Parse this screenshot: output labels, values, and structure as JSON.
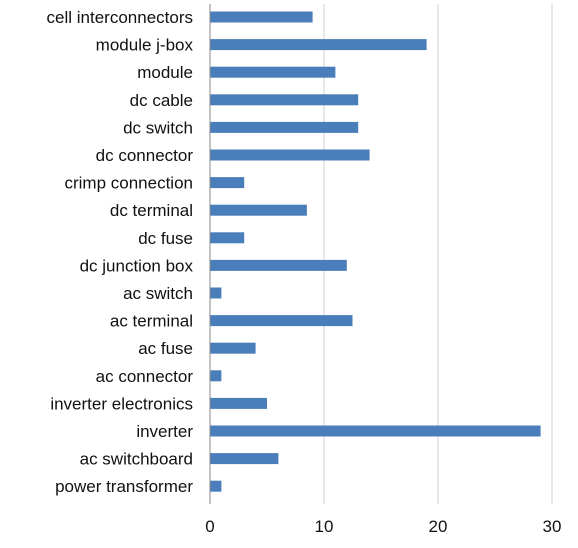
{
  "chart_data": {
    "type": "bar",
    "orientation": "horizontal",
    "categories": [
      "cell interconnectors",
      "module j-box",
      "module",
      "dc cable",
      "dc switch",
      "dc connector",
      "crimp connection",
      "dc terminal",
      "dc fuse",
      "dc junction box",
      "ac switch",
      "ac terminal",
      "ac fuse",
      "ac connector",
      "inverter electronics",
      "inverter",
      "ac switchboard",
      "power transformer"
    ],
    "values": [
      9,
      19,
      11,
      13,
      13,
      14,
      3,
      8.5,
      3,
      12,
      1,
      12.5,
      4,
      1,
      5,
      29,
      6,
      1
    ],
    "title": "",
    "xlabel": "",
    "ylabel": "",
    "xlim": [
      0,
      30
    ],
    "xticks": [
      "0",
      "10",
      "20",
      "30"
    ],
    "grid": "vertical",
    "legend": "none",
    "colors": {
      "bar": "#4a7ebb",
      "grid": "#d0d0d0",
      "axis": "#8a8a8a",
      "text": "#111111"
    }
  }
}
